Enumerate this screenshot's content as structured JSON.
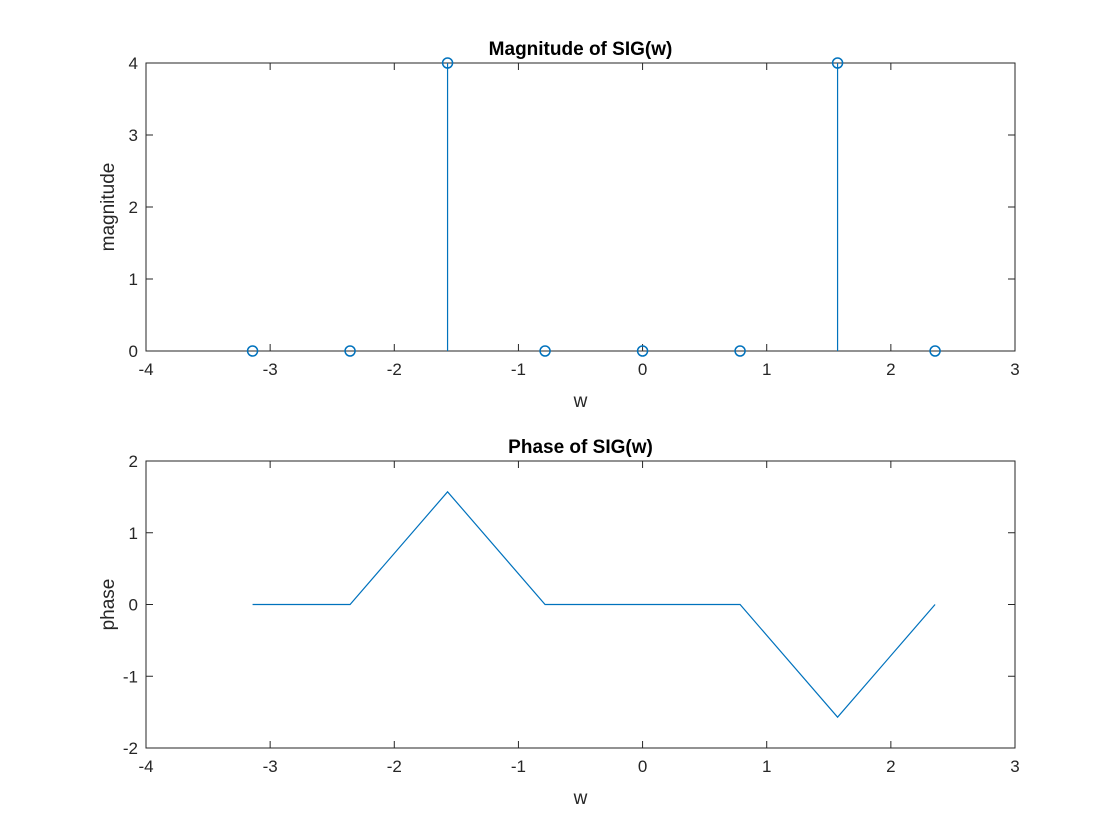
{
  "colors": {
    "series": "#0072bd",
    "axes": "#262626",
    "background": "#ffffff"
  },
  "chart_data": [
    {
      "type": "stem",
      "title": "Magnitude of SIG(w)",
      "xlabel": "w",
      "ylabel": "magnitude",
      "xlim": [
        -4,
        3
      ],
      "ylim": [
        0,
        4
      ],
      "xticks": [
        -4,
        -3,
        -2,
        -1,
        0,
        1,
        2,
        3
      ],
      "yticks": [
        0,
        1,
        2,
        3,
        4
      ],
      "grid": false,
      "marker": "circle",
      "x": [
        -3.1416,
        -2.3562,
        -1.5708,
        -0.7854,
        0,
        0.7854,
        1.5708,
        2.3562
      ],
      "y": [
        0,
        0,
        4,
        0,
        0,
        0,
        4,
        0
      ]
    },
    {
      "type": "line",
      "title": "Phase of SIG(w)",
      "xlabel": "w",
      "ylabel": "phase",
      "xlim": [
        -4,
        3
      ],
      "ylim": [
        -2,
        2
      ],
      "xticks": [
        -4,
        -3,
        -2,
        -1,
        0,
        1,
        2,
        3
      ],
      "yticks": [
        -2,
        -1,
        0,
        1,
        2
      ],
      "grid": false,
      "x": [
        -3.1416,
        -2.3562,
        -1.5708,
        -0.7854,
        0,
        0.7854,
        1.5708,
        2.3562
      ],
      "y": [
        0,
        0,
        1.5708,
        0,
        0,
        0,
        -1.5708,
        0
      ]
    }
  ]
}
